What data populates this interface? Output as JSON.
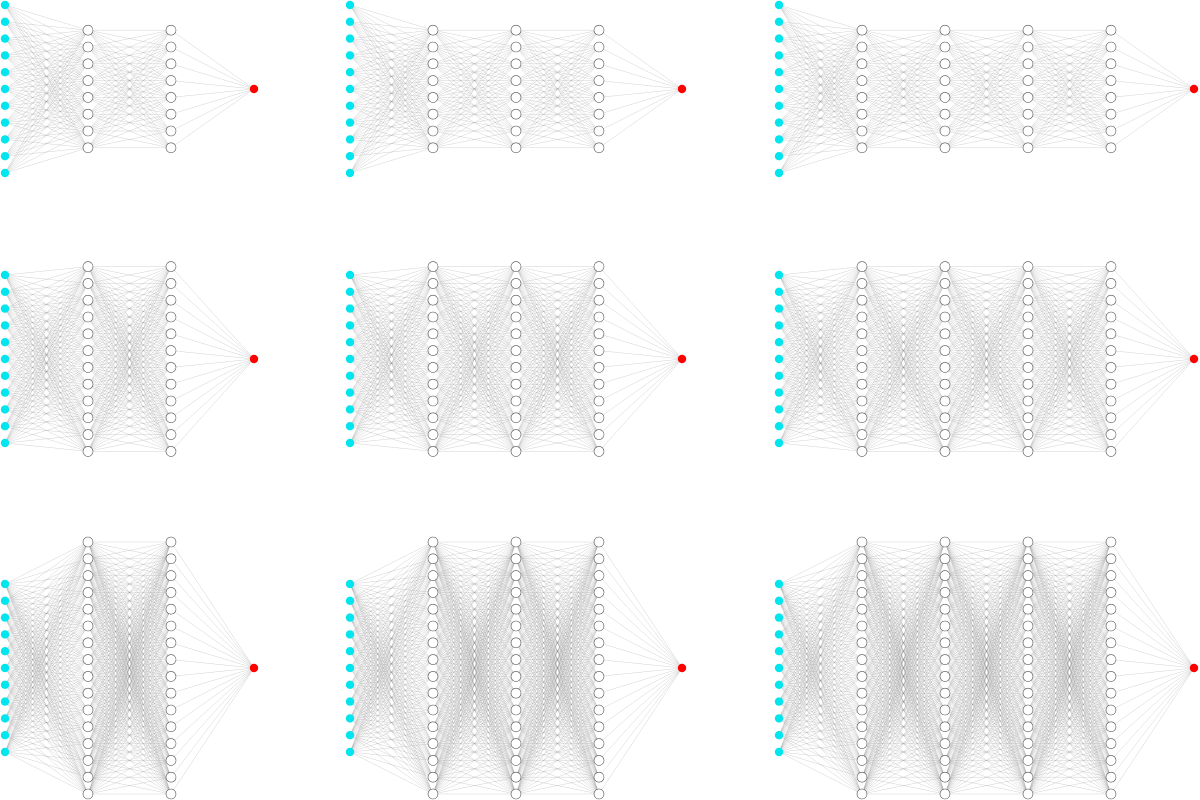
{
  "colors": {
    "input": "#00e5ee",
    "output": "#ff0000",
    "hidden_fill": "#ffffff",
    "hidden_stroke": "#555555",
    "edge": "#8a8a8a"
  },
  "grid": {
    "rows": 3,
    "cols": 3
  },
  "networks": [
    {
      "row": 0,
      "col": 0,
      "layers": [
        11,
        8,
        8,
        1
      ]
    },
    {
      "row": 0,
      "col": 1,
      "layers": [
        11,
        8,
        8,
        8,
        1
      ]
    },
    {
      "row": 0,
      "col": 2,
      "layers": [
        11,
        8,
        8,
        8,
        8,
        1
      ]
    },
    {
      "row": 1,
      "col": 0,
      "layers": [
        11,
        12,
        12,
        1
      ]
    },
    {
      "row": 1,
      "col": 1,
      "layers": [
        11,
        12,
        12,
        12,
        1
      ]
    },
    {
      "row": 1,
      "col": 2,
      "layers": [
        11,
        12,
        12,
        12,
        12,
        1
      ]
    },
    {
      "row": 2,
      "col": 0,
      "layers": [
        11,
        16,
        16,
        1
      ]
    },
    {
      "row": 2,
      "col": 1,
      "layers": [
        11,
        16,
        16,
        16,
        1
      ]
    },
    {
      "row": 2,
      "col": 2,
      "layers": [
        11,
        16,
        16,
        16,
        16,
        1
      ]
    }
  ]
}
